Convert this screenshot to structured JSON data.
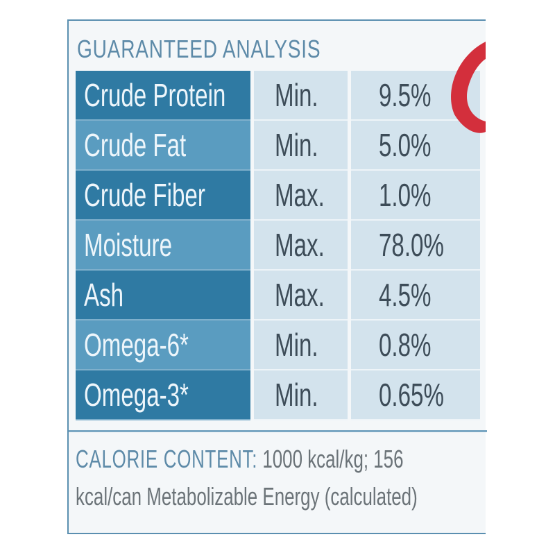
{
  "analysis": {
    "title": "GUARANTEED ANALYSIS",
    "rows": [
      [
        "Crude Protein",
        "Min.",
        "9.5%"
      ],
      [
        "Crude Fat",
        "Min.",
        "5.0%"
      ],
      [
        "Crude Fiber",
        "Max.",
        "1.0%"
      ],
      [
        "Moisture",
        "Max.",
        "78.0%"
      ],
      [
        "Ash",
        "Max.",
        "4.5%"
      ],
      [
        "Omega-6*",
        "Min.",
        "0.8%"
      ],
      [
        "Omega-3*",
        "Min.",
        "0.65%"
      ]
    ]
  },
  "calorie": {
    "label": "CALORIE CONTENT:",
    "text": "1000 kcal/kg; 156 kcal/can Metabolizable Energy (calculated)"
  }
}
